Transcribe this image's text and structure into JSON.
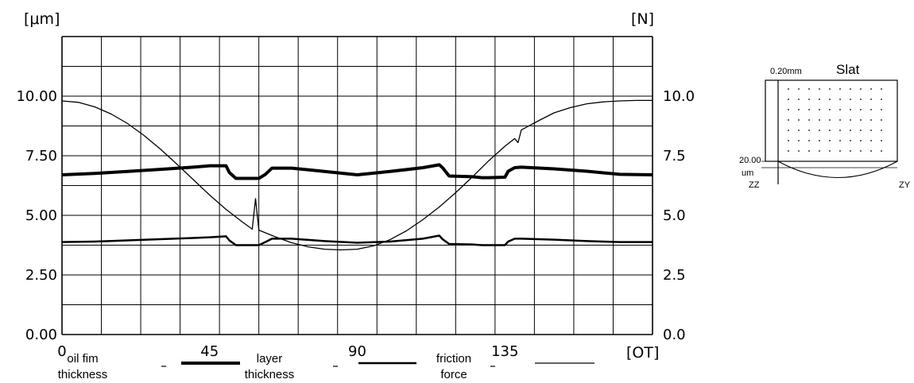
{
  "chart_data": {
    "type": "line",
    "x_unit": "[OT]",
    "y_left_unit": "[μm]",
    "y_right_unit": "[N]",
    "x_ticks": [
      "0",
      "45",
      "90",
      "135"
    ],
    "y_left_ticks": [
      "0.00",
      "2.50",
      "5.00",
      "7.50",
      "10.00"
    ],
    "y_right_ticks": [
      "0.0",
      "2.5",
      "5.0",
      "7.5",
      "10.0"
    ],
    "xlim": [
      0,
      180
    ],
    "ylim_left": [
      0,
      12.5
    ],
    "ylim_right": [
      0,
      12.5
    ],
    "grid": true,
    "legend_placement": "bottom",
    "series": [
      {
        "name": "oil fim thickness",
        "legend_lines": [
          "oil fim",
          "thickness"
        ],
        "stroke_width": 4,
        "x": [
          0,
          10,
          20,
          30,
          40,
          45,
          50,
          51,
          53,
          60,
          62,
          64,
          70,
          80,
          90,
          100,
          110,
          115,
          116,
          118,
          125,
          128,
          130,
          135,
          136,
          138,
          140,
          150,
          160,
          170,
          180
        ],
        "y": [
          6.7,
          6.76,
          6.84,
          6.93,
          7.02,
          7.08,
          7.08,
          6.8,
          6.55,
          6.55,
          6.72,
          6.98,
          6.98,
          6.84,
          6.7,
          6.84,
          7.0,
          7.12,
          7.0,
          6.65,
          6.62,
          6.58,
          6.58,
          6.6,
          6.85,
          7.0,
          7.02,
          6.95,
          6.85,
          6.72,
          6.7
        ]
      },
      {
        "name": "layer thickness",
        "legend_lines": [
          "layer",
          "thickness"
        ],
        "stroke_width": 2.5,
        "x": [
          0,
          10,
          20,
          30,
          40,
          45,
          50,
          51,
          53,
          60,
          62,
          64,
          70,
          80,
          90,
          100,
          110,
          115,
          116,
          118,
          125,
          128,
          130,
          135,
          136,
          138,
          140,
          150,
          160,
          170,
          180
        ],
        "y": [
          3.88,
          3.9,
          3.95,
          4.0,
          4.05,
          4.08,
          4.12,
          3.95,
          3.75,
          3.75,
          3.88,
          4.02,
          4.02,
          3.92,
          3.85,
          3.9,
          4.02,
          4.15,
          4.0,
          3.8,
          3.78,
          3.75,
          3.75,
          3.75,
          3.9,
          4.02,
          4.02,
          3.98,
          3.92,
          3.88,
          3.88
        ]
      },
      {
        "name": "friction force",
        "legend_lines": [
          "friction",
          "force"
        ],
        "stroke_width": 1.3,
        "x": [
          0,
          5,
          10,
          15,
          20,
          25,
          30,
          35,
          40,
          45,
          50,
          55,
          58,
          59,
          60,
          65,
          70,
          75,
          80,
          85,
          90,
          95,
          100,
          105,
          110,
          115,
          120,
          125,
          130,
          135,
          138,
          139,
          140,
          145,
          150,
          155,
          160,
          165,
          170,
          175,
          180
        ],
        "y": [
          9.8,
          9.74,
          9.55,
          9.25,
          8.85,
          8.35,
          7.78,
          7.15,
          6.5,
          5.85,
          5.25,
          4.72,
          4.42,
          5.7,
          4.38,
          4.1,
          3.85,
          3.68,
          3.58,
          3.55,
          3.58,
          3.72,
          3.98,
          4.35,
          4.82,
          5.35,
          5.95,
          6.6,
          7.28,
          7.9,
          8.22,
          8.05,
          8.58,
          8.95,
          9.3,
          9.52,
          9.68,
          9.76,
          9.8,
          9.82,
          9.82
        ]
      }
    ]
  },
  "slat": {
    "title": "Slat",
    "width_label": "0.20mm",
    "depth_value": "20.00",
    "depth_unit": "um",
    "left_label": "ZZ",
    "right_label": "ZY"
  }
}
